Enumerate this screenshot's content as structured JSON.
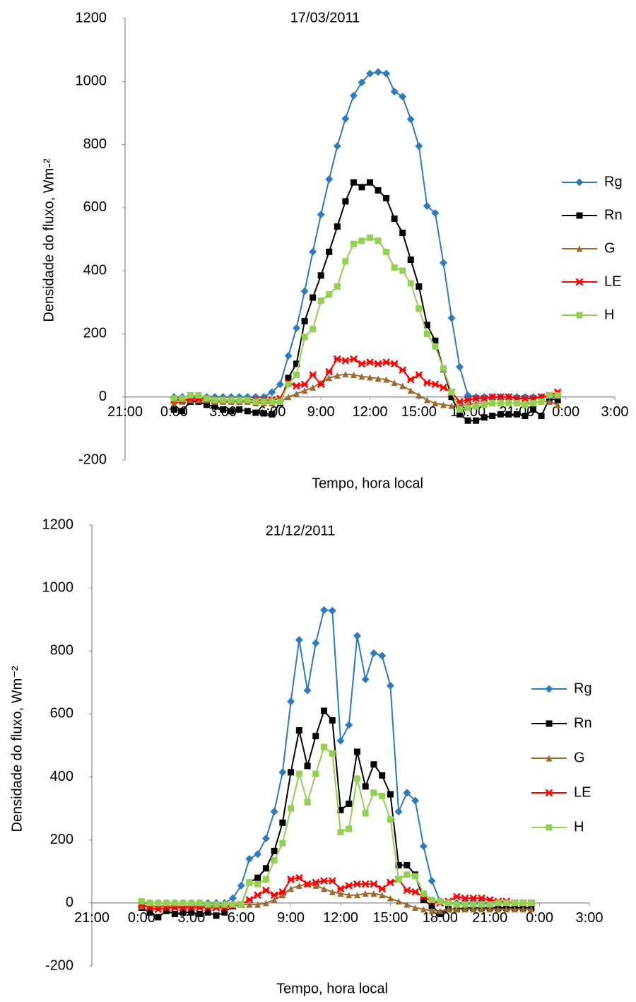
{
  "chart_data": [
    {
      "type": "line",
      "title": "17/03/2011",
      "x_label": "Tempo, hora local",
      "y_label": "Densidade do fluxo, Wm-²",
      "x": [
        0,
        0.5,
        1,
        1.5,
        2,
        2.5,
        3,
        3.5,
        4,
        4.5,
        5,
        5.5,
        6,
        6.5,
        7,
        7.5,
        8,
        8.5,
        9,
        9.5,
        10,
        10.5,
        11,
        11.5,
        12,
        12.5,
        13,
        13.5,
        14,
        14.5,
        15,
        15.5,
        16,
        16.5,
        17,
        17.5,
        18,
        18.5,
        19,
        19.5,
        20,
        20.5,
        21,
        21.5,
        22,
        22.5,
        23,
        23.5
      ],
      "xlim": [
        -3,
        27
      ],
      "xticks": [
        {
          "value": -3,
          "label": "21:00"
        },
        {
          "value": 0,
          "label": "0:00"
        },
        {
          "value": 3,
          "label": "3:00"
        },
        {
          "value": 6,
          "label": "6:00"
        },
        {
          "value": 9,
          "label": "9:00"
        },
        {
          "value": 12,
          "label": "12:00"
        },
        {
          "value": 15,
          "label": "15:00"
        },
        {
          "value": 18,
          "label": "18:00"
        },
        {
          "value": 21,
          "label": "21:00"
        },
        {
          "value": 24,
          "label": "0:00"
        },
        {
          "value": 27,
          "label": "3:00"
        }
      ],
      "ylim": [
        -200,
        1200
      ],
      "yticks": [
        -200,
        0,
        200,
        400,
        600,
        800,
        1000,
        1200
      ],
      "grid": false,
      "legend": "right",
      "series": [
        {
          "name": "Rg",
          "color": "#2e7ac0",
          "values": [
            0,
            0,
            0,
            0,
            0,
            0,
            0,
            0,
            0,
            0,
            0,
            0,
            15,
            40,
            130,
            218,
            335,
            460,
            578,
            690,
            795,
            882,
            955,
            997,
            1025,
            1030,
            1025,
            968,
            952,
            880,
            795,
            605,
            583,
            425,
            250,
            95,
            5,
            0,
            0,
            0,
            0,
            0,
            0,
            0,
            0,
            0,
            0,
            0
          ]
        },
        {
          "name": "Rn",
          "color": "#000000",
          "values": [
            -40,
            -45,
            -15,
            -15,
            -25,
            -30,
            -40,
            -45,
            -40,
            -45,
            -50,
            -52,
            -55,
            -20,
            60,
            105,
            240,
            315,
            385,
            460,
            540,
            620,
            680,
            665,
            680,
            655,
            630,
            565,
            520,
            435,
            350,
            228,
            178,
            88,
            0,
            -55,
            -75,
            -75,
            -65,
            -60,
            -55,
            -55,
            -55,
            -60,
            -40,
            -60,
            -5,
            -10
          ]
        },
        {
          "name": "G",
          "color": "#9c6a2e",
          "values": [
            -20,
            -15,
            -10,
            -10,
            -10,
            -15,
            -15,
            -15,
            -15,
            -15,
            -20,
            -20,
            -20,
            -15,
            0,
            10,
            20,
            30,
            45,
            60,
            68,
            72,
            70,
            65,
            62,
            58,
            55,
            45,
            35,
            20,
            5,
            -10,
            -20,
            -25,
            -28,
            -28,
            -25,
            -20,
            -20,
            -20,
            -20,
            -20,
            -20,
            -20,
            -20,
            -15,
            -15,
            -25
          ]
        },
        {
          "name": "LE",
          "color": "#ff0000",
          "values": [
            -10,
            -10,
            -5,
            -5,
            -5,
            -10,
            -10,
            -10,
            -10,
            -10,
            -10,
            -10,
            -10,
            -5,
            45,
            35,
            40,
            70,
            40,
            80,
            120,
            115,
            120,
            105,
            110,
            105,
            110,
            105,
            85,
            55,
            70,
            45,
            40,
            30,
            15,
            -15,
            -10,
            -5,
            -5,
            0,
            0,
            0,
            -5,
            -5,
            -5,
            0,
            5,
            15
          ]
        },
        {
          "name": "H",
          "color": "#92d050",
          "values": [
            -5,
            -5,
            5,
            5,
            -5,
            -10,
            -10,
            -10,
            -10,
            -10,
            -15,
            -15,
            -15,
            -15,
            40,
            70,
            190,
            215,
            305,
            325,
            350,
            430,
            485,
            495,
            505,
            495,
            460,
            410,
            400,
            360,
            280,
            200,
            160,
            90,
            15,
            -40,
            -35,
            -30,
            -25,
            -20,
            -20,
            -20,
            -20,
            -25,
            -20,
            -15,
            5,
            5
          ]
        }
      ]
    },
    {
      "type": "line",
      "title": "21/12/2011",
      "x_label": "Tempo, hora local",
      "y_label": "Densidade do fluxo, Wm⁻²",
      "x": [
        0,
        0.5,
        1,
        1.5,
        2,
        2.5,
        3,
        3.5,
        4,
        4.5,
        5,
        5.5,
        6,
        6.5,
        7,
        7.5,
        8,
        8.5,
        9,
        9.5,
        10,
        10.5,
        11,
        11.5,
        12,
        12.5,
        13,
        13.5,
        14,
        14.5,
        15,
        15.5,
        16,
        16.5,
        17,
        17.5,
        18,
        18.5,
        19,
        19.5,
        20,
        20.5,
        21,
        21.5,
        22,
        22.5,
        23,
        23.5
      ],
      "xlim": [
        -3,
        27
      ],
      "xticks": [
        {
          "value": -3,
          "label": "21:00"
        },
        {
          "value": 0,
          "label": "0:00"
        },
        {
          "value": 3,
          "label": "3:00"
        },
        {
          "value": 6,
          "label": "6:00"
        },
        {
          "value": 9,
          "label": "9:00"
        },
        {
          "value": 12,
          "label": "12:00"
        },
        {
          "value": 15,
          "label": "15:00"
        },
        {
          "value": 18,
          "label": "18:00"
        },
        {
          "value": 21,
          "label": "21:00"
        },
        {
          "value": 24,
          "label": "0:00"
        },
        {
          "value": 27,
          "label": "3:00"
        }
      ],
      "ylim": [
        -200,
        1200
      ],
      "yticks": [
        -200,
        0,
        200,
        400,
        600,
        800,
        1000,
        1200
      ],
      "grid": false,
      "legend": "right",
      "series": [
        {
          "name": "Rg",
          "color": "#2e7ac0",
          "values": [
            0,
            0,
            0,
            0,
            0,
            0,
            0,
            0,
            0,
            0,
            0,
            15,
            55,
            140,
            155,
            205,
            290,
            415,
            640,
            835,
            675,
            825,
            930,
            928,
            515,
            565,
            848,
            710,
            793,
            785,
            690,
            290,
            350,
            325,
            180,
            70,
            5,
            0,
            0,
            0,
            0,
            0,
            0,
            0,
            0,
            0,
            0,
            0
          ]
        },
        {
          "name": "Rn",
          "color": "#000000",
          "values": [
            -15,
            -30,
            -45,
            -25,
            -35,
            -30,
            -30,
            -35,
            -30,
            -40,
            -30,
            -10,
            -5,
            65,
            80,
            110,
            165,
            255,
            415,
            548,
            435,
            530,
            610,
            580,
            295,
            315,
            480,
            370,
            440,
            405,
            345,
            120,
            120,
            90,
            10,
            -10,
            -35,
            -20,
            -20,
            -15,
            -15,
            -15,
            -15,
            -15,
            -15,
            -15,
            -15,
            -15
          ]
        },
        {
          "name": "G",
          "color": "#9c6a2e",
          "values": [
            -10,
            -10,
            -10,
            -10,
            -10,
            -10,
            -10,
            -10,
            -10,
            -10,
            -10,
            -5,
            -5,
            -5,
            -5,
            0,
            10,
            25,
            45,
            55,
            60,
            55,
            45,
            35,
            30,
            25,
            25,
            30,
            30,
            25,
            15,
            5,
            -5,
            -15,
            -20,
            -25,
            -25,
            -20,
            -20,
            -20,
            -20,
            -20,
            -20,
            -20,
            -20,
            -20,
            -20,
            -20
          ]
        },
        {
          "name": "LE",
          "color": "#ff0000",
          "values": [
            -5,
            -15,
            -20,
            -15,
            -15,
            -15,
            -15,
            -15,
            -15,
            -15,
            -15,
            -10,
            -5,
            10,
            25,
            40,
            25,
            35,
            75,
            80,
            60,
            65,
            70,
            70,
            45,
            55,
            60,
            60,
            60,
            45,
            65,
            75,
            40,
            35,
            20,
            5,
            0,
            5,
            20,
            15,
            15,
            15,
            10,
            5,
            5,
            0,
            0,
            0
          ]
        },
        {
          "name": "H",
          "color": "#92d050",
          "values": [
            5,
            0,
            0,
            0,
            0,
            0,
            0,
            0,
            -5,
            -5,
            -5,
            -5,
            -5,
            65,
            60,
            75,
            135,
            190,
            300,
            410,
            320,
            410,
            495,
            475,
            225,
            235,
            395,
            285,
            350,
            340,
            265,
            75,
            90,
            85,
            30,
            10,
            5,
            0,
            -5,
            -5,
            -5,
            -5,
            -5,
            0,
            0,
            0,
            0,
            0
          ]
        }
      ]
    }
  ]
}
